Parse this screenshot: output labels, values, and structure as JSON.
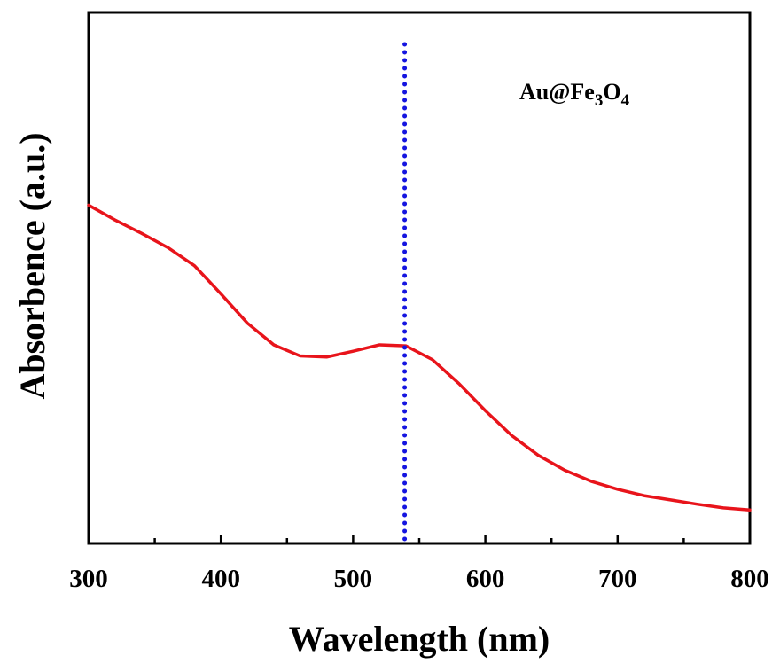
{
  "chart_data": {
    "type": "line",
    "xlabel": "Wavelength (nm)",
    "ylabel": "Absorbence (a.u.)",
    "xlim": [
      300,
      800
    ],
    "ylim": [
      0,
      1
    ],
    "x_ticks": [
      "300",
      "400",
      "500",
      "600",
      "700",
      "800"
    ],
    "y_ticks": [],
    "grid": false,
    "annotation": {
      "base": "Au@Fe",
      "sub1": "3",
      "mid": "O",
      "sub2": "4"
    },
    "series": [
      {
        "color": "#e8141b",
        "x": [
          300,
          320,
          340,
          360,
          380,
          400,
          420,
          440,
          460,
          480,
          500,
          520,
          540,
          560,
          580,
          600,
          620,
          640,
          660,
          680,
          700,
          720,
          740,
          760,
          780,
          800
        ],
        "y": [
          0.637,
          0.609,
          0.584,
          0.557,
          0.523,
          0.47,
          0.415,
          0.374,
          0.353,
          0.351,
          0.362,
          0.374,
          0.372,
          0.346,
          0.301,
          0.25,
          0.203,
          0.166,
          0.138,
          0.117,
          0.102,
          0.09,
          0.082,
          0.074,
          0.067,
          0.063
        ]
      }
    ],
    "reference_line": {
      "x": 539,
      "y_top": 0.94,
      "color": "#1515e0",
      "style": "dotted"
    },
    "colors": {
      "axis": "#000000",
      "curve": "#e8141b",
      "marker_line": "#1515e0"
    }
  }
}
